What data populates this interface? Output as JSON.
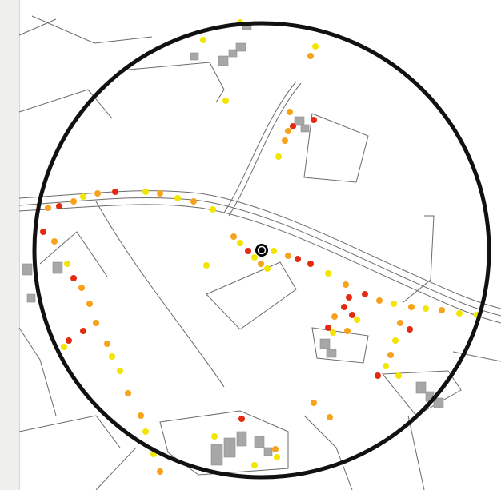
{
  "map": {
    "caption": "",
    "colors": {
      "background": "#ffffff",
      "road_line": "#6b6b6b",
      "building": "#a7a7a7",
      "circle": "#111111",
      "points_yellow": "#f2e600",
      "points_orange": "#f7a21a",
      "points_red": "#e52a10",
      "center_marker": "#000000"
    },
    "icons": {
      "center": "radar-center-icon",
      "points": "heatmap-dot-icon"
    }
  }
}
